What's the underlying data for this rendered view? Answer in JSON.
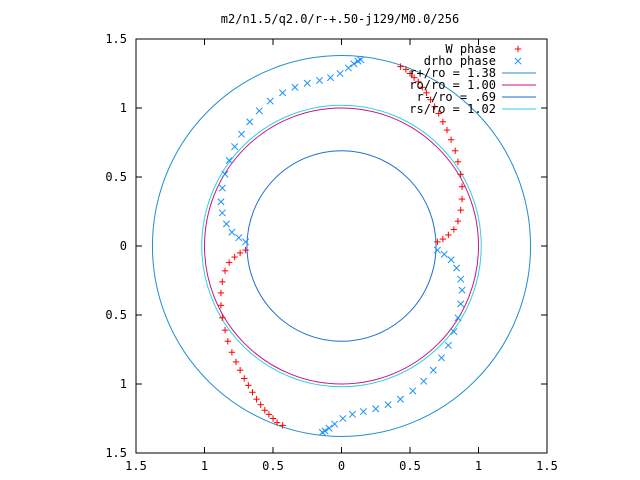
{
  "chart_data": {
    "type": "scatter",
    "title": "m2/n1.5/q2.0/r-+.50-j129/M0.0/256",
    "xlabel": "",
    "ylabel": "",
    "xlim": [
      -1.5,
      1.5
    ],
    "ylim": [
      -1.5,
      1.5
    ],
    "x_ticks": [
      -1.5,
      -1,
      -0.5,
      0,
      0.5,
      1,
      1.5
    ],
    "x_tick_labels": [
      "1.5",
      "1",
      "0.5",
      "0",
      "0.5",
      "1",
      "1.5"
    ],
    "y_ticks": [
      1.5,
      1,
      0.5,
      0,
      -0.5,
      -1,
      -1.5
    ],
    "y_tick_labels": [
      "1.5",
      "1",
      "0.5",
      "0",
      "0.5",
      "1",
      "1.5"
    ],
    "grid": false,
    "legend_position": "top-right",
    "series": [
      {
        "name": "W phase",
        "marker": "plus",
        "color": "#ff0000",
        "points": [
          [
            0.43,
            1.3
          ],
          [
            0.47,
            1.28
          ],
          [
            0.5,
            1.25
          ],
          [
            0.53,
            1.22
          ],
          [
            0.56,
            1.19
          ],
          [
            0.59,
            1.15
          ],
          [
            0.62,
            1.11
          ],
          [
            0.65,
            1.06
          ],
          [
            0.68,
            1.01
          ],
          [
            0.71,
            0.96
          ],
          [
            0.74,
            0.9
          ],
          [
            0.77,
            0.84
          ],
          [
            0.8,
            0.77
          ],
          [
            0.83,
            0.69
          ],
          [
            0.85,
            0.61
          ],
          [
            0.87,
            0.52
          ],
          [
            0.88,
            0.43
          ],
          [
            0.88,
            0.34
          ],
          [
            0.87,
            0.26
          ],
          [
            0.85,
            0.18
          ],
          [
            0.82,
            0.12
          ],
          [
            0.78,
            0.08
          ],
          [
            0.74,
            0.05
          ],
          [
            0.7,
            0.03
          ],
          [
            -0.7,
            -0.03
          ],
          [
            -0.74,
            -0.05
          ],
          [
            -0.78,
            -0.08
          ],
          [
            -0.82,
            -0.12
          ],
          [
            -0.85,
            -0.18
          ],
          [
            -0.87,
            -0.26
          ],
          [
            -0.88,
            -0.34
          ],
          [
            -0.88,
            -0.43
          ],
          [
            -0.87,
            -0.52
          ],
          [
            -0.85,
            -0.61
          ],
          [
            -0.83,
            -0.69
          ],
          [
            -0.8,
            -0.77
          ],
          [
            -0.77,
            -0.84
          ],
          [
            -0.74,
            -0.9
          ],
          [
            -0.71,
            -0.96
          ],
          [
            -0.68,
            -1.01
          ],
          [
            -0.65,
            -1.06
          ],
          [
            -0.62,
            -1.11
          ],
          [
            -0.59,
            -1.15
          ],
          [
            -0.56,
            -1.19
          ],
          [
            -0.53,
            -1.22
          ],
          [
            -0.5,
            -1.25
          ],
          [
            -0.47,
            -1.28
          ],
          [
            -0.43,
            -1.3
          ]
        ]
      },
      {
        "name": "drho phase",
        "marker": "cross",
        "color": "#1e90ff",
        "points": [
          [
            0.7,
            -0.03
          ],
          [
            0.75,
            -0.06
          ],
          [
            0.8,
            -0.1
          ],
          [
            0.84,
            -0.16
          ],
          [
            0.87,
            -0.24
          ],
          [
            0.88,
            -0.32
          ],
          [
            0.87,
            -0.42
          ],
          [
            0.85,
            -0.52
          ],
          [
            0.82,
            -0.62
          ],
          [
            0.78,
            -0.72
          ],
          [
            0.73,
            -0.81
          ],
          [
            0.67,
            -0.9
          ],
          [
            0.6,
            -0.98
          ],
          [
            0.52,
            -1.05
          ],
          [
            0.43,
            -1.11
          ],
          [
            0.34,
            -1.15
          ],
          [
            0.25,
            -1.18
          ],
          [
            0.16,
            -1.2
          ],
          [
            0.08,
            -1.22
          ],
          [
            0.01,
            -1.25
          ],
          [
            -0.05,
            -1.29
          ],
          [
            -0.09,
            -1.32
          ],
          [
            -0.12,
            -1.34
          ],
          [
            -0.14,
            -1.35
          ],
          [
            -0.7,
            0.03
          ],
          [
            -0.75,
            0.06
          ],
          [
            -0.8,
            0.1
          ],
          [
            -0.84,
            0.16
          ],
          [
            -0.87,
            0.24
          ],
          [
            -0.88,
            0.32
          ],
          [
            -0.87,
            0.42
          ],
          [
            -0.85,
            0.52
          ],
          [
            -0.82,
            0.62
          ],
          [
            -0.78,
            0.72
          ],
          [
            -0.73,
            0.81
          ],
          [
            -0.67,
            0.9
          ],
          [
            -0.6,
            0.98
          ],
          [
            -0.52,
            1.05
          ],
          [
            -0.43,
            1.11
          ],
          [
            -0.34,
            1.15
          ],
          [
            -0.25,
            1.18
          ],
          [
            -0.16,
            1.2
          ],
          [
            -0.08,
            1.22
          ],
          [
            -0.01,
            1.25
          ],
          [
            0.05,
            1.29
          ],
          [
            0.09,
            1.32
          ],
          [
            0.12,
            1.34
          ],
          [
            0.14,
            1.35
          ]
        ]
      },
      {
        "name": "r+/ro = 1.38",
        "type": "circle",
        "radius": 1.38,
        "color": "#1e8ecf"
      },
      {
        "name": "ro/ro = 1.00",
        "type": "circle",
        "radius": 1.0,
        "color": "#c71585"
      },
      {
        "name": "r-/ro = .69",
        "type": "circle",
        "radius": 0.69,
        "color": "#1e6fcf"
      },
      {
        "name": "rs/ro = 1.02",
        "type": "circle",
        "radius": 1.02,
        "color": "#30d0e0"
      }
    ]
  }
}
